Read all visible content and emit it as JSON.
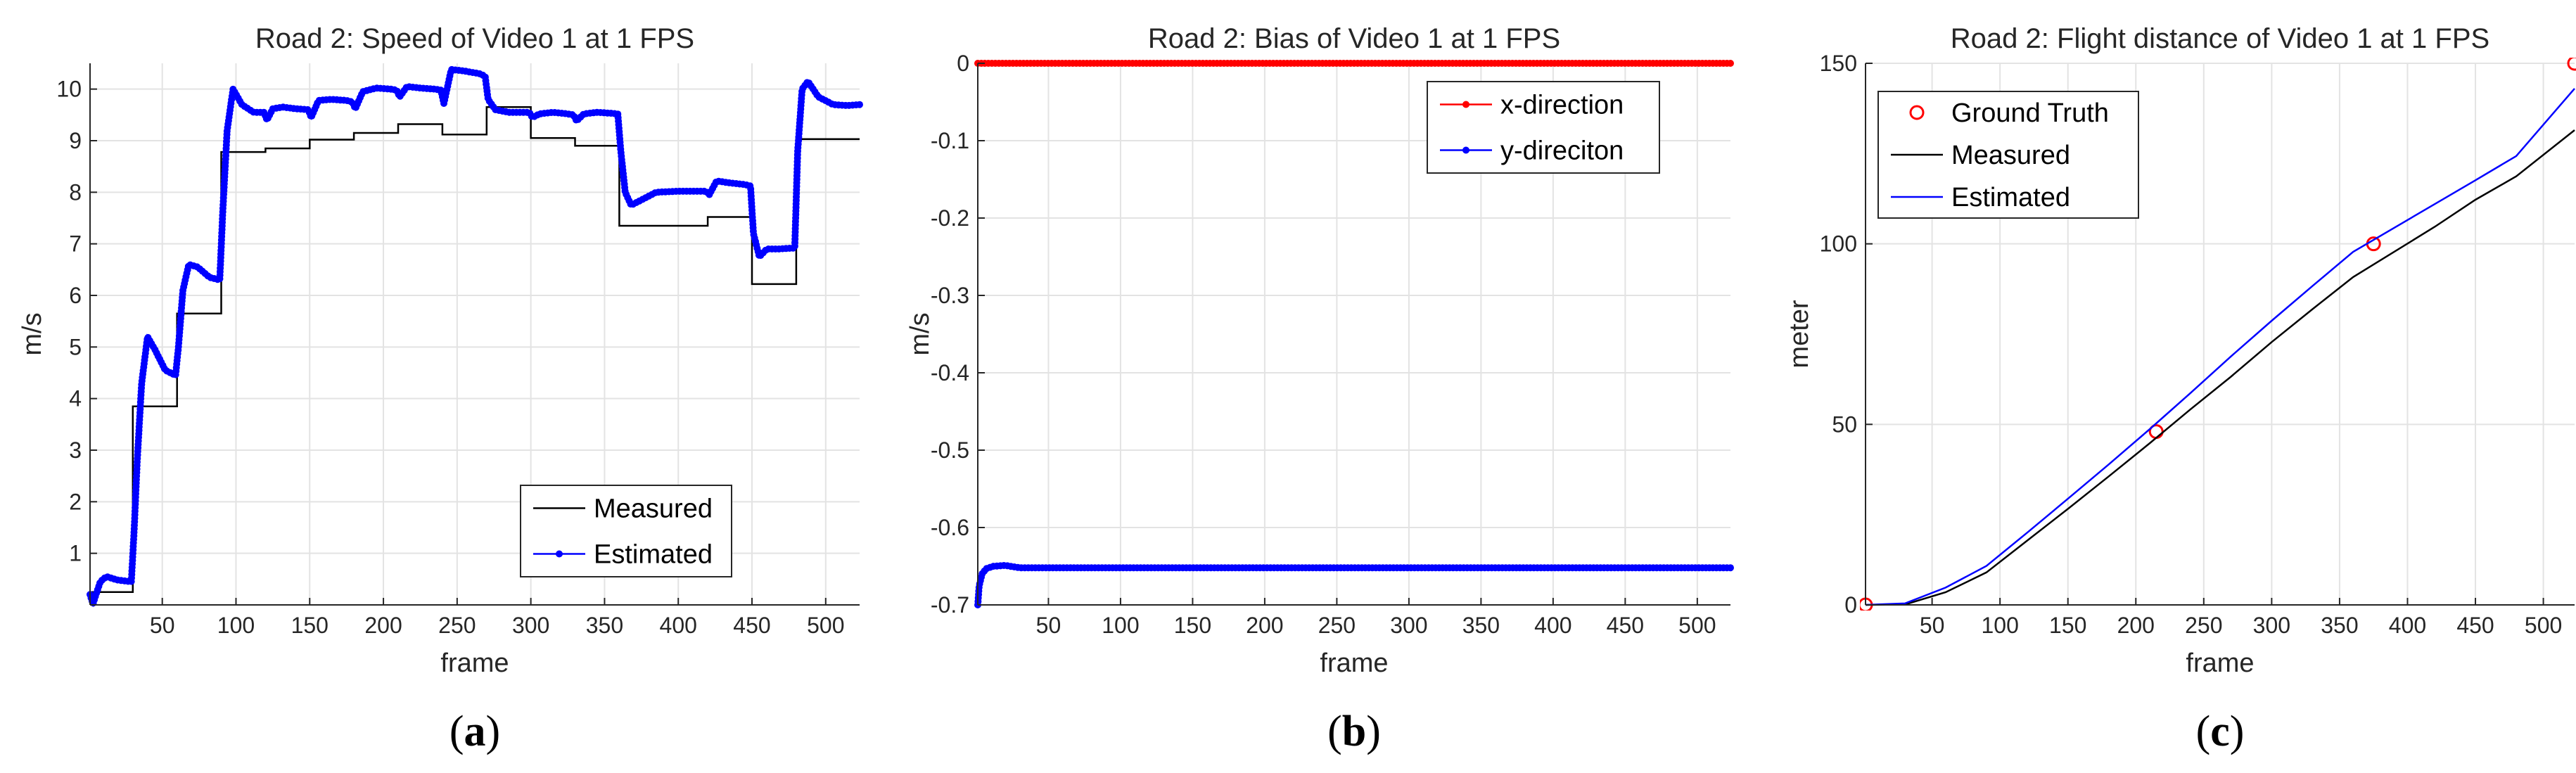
{
  "chart_data": [
    {
      "panel": "(a)",
      "panel_letter": "a",
      "type": "line",
      "title": "Road 2: Speed of Video 1 at 1 FPS",
      "xlabel": "frame",
      "ylabel": "m/s",
      "xlim": [
        1,
        523
      ],
      "ylim": [
        0,
        10.5
      ],
      "xticks": [
        50,
        100,
        150,
        200,
        250,
        300,
        350,
        400,
        450,
        500
      ],
      "yticks": [
        1,
        2,
        3,
        4,
        5,
        6,
        7,
        8,
        9,
        10
      ],
      "grid": true,
      "legend": "bottom-right",
      "series": [
        {
          "name": "Measured",
          "color": "#000000",
          "style": "step",
          "x": [
            1,
            30,
            30,
            60,
            60,
            90,
            90,
            120,
            120,
            150,
            150,
            180,
            180,
            210,
            210,
            240,
            240,
            270,
            270,
            300,
            300,
            330,
            330,
            360,
            360,
            420,
            420,
            450,
            450,
            480,
            480,
            523
          ],
          "y": [
            0.25,
            0.25,
            3.85,
            3.85,
            5.65,
            5.65,
            8.78,
            8.78,
            8.85,
            8.85,
            9.02,
            9.02,
            9.15,
            9.15,
            9.32,
            9.32,
            9.12,
            9.12,
            9.65,
            9.65,
            9.05,
            9.05,
            8.9,
            8.9,
            7.35,
            7.35,
            7.52,
            7.52,
            6.22,
            6.22,
            9.03,
            9.03
          ]
        },
        {
          "name": "Estimated",
          "color": "#0000ff",
          "style": "dotted-line",
          "x": [
            1,
            3,
            5,
            8,
            12,
            20,
            29,
            31,
            33,
            36,
            40,
            45,
            52,
            59,
            61,
            64,
            68,
            74,
            82,
            89,
            91,
            94,
            98,
            104,
            112,
            119,
            121,
            125,
            132,
            140,
            149,
            151,
            156,
            165,
            175,
            179,
            181,
            186,
            195,
            205,
            209,
            211,
            216,
            225,
            235,
            239,
            241,
            246,
            255,
            265,
            269,
            271,
            276,
            285,
            295,
            299,
            301,
            306,
            315,
            325,
            329,
            331,
            336,
            345,
            355,
            359,
            361,
            364,
            368,
            375,
            385,
            400,
            419,
            421,
            426,
            435,
            445,
            449,
            451,
            455,
            460,
            468,
            479,
            481,
            484,
            488,
            495,
            505,
            515,
            523
          ],
          "y": [
            0.2,
            0.02,
            0.2,
            0.45,
            0.55,
            0.48,
            0.45,
            1.5,
            2.8,
            4.3,
            5.2,
            4.95,
            4.55,
            4.45,
            5.0,
            6.1,
            6.6,
            6.55,
            6.35,
            6.3,
            7.6,
            9.2,
            10.0,
            9.7,
            9.55,
            9.55,
            9.4,
            9.62,
            9.65,
            9.62,
            9.6,
            9.45,
            9.78,
            9.8,
            9.78,
            9.75,
            9.62,
            9.95,
            10.02,
            10.0,
            9.98,
            9.85,
            10.05,
            10.02,
            10.0,
            9.98,
            9.72,
            10.38,
            10.35,
            10.3,
            10.25,
            9.8,
            9.6,
            9.55,
            9.55,
            9.55,
            9.45,
            9.52,
            9.55,
            9.52,
            9.5,
            9.38,
            9.52,
            9.55,
            9.53,
            9.52,
            8.8,
            8.0,
            7.75,
            7.85,
            8.0,
            8.02,
            8.02,
            7.95,
            8.22,
            8.18,
            8.15,
            8.12,
            7.2,
            6.75,
            6.9,
            6.9,
            6.92,
            8.8,
            10.0,
            10.15,
            9.85,
            9.7,
            9.68,
            9.7
          ]
        }
      ]
    },
    {
      "panel": "(b)",
      "panel_letter": "b",
      "type": "line",
      "title": "Road 2: Bias of Video 1 at 1 FPS",
      "xlabel": "frame",
      "ylabel": "m/s",
      "xlim": [
        1,
        523
      ],
      "ylim": [
        -0.7,
        0
      ],
      "xticks": [
        50,
        100,
        150,
        200,
        250,
        300,
        350,
        400,
        450,
        500
      ],
      "yticks": [
        0,
        -0.1,
        -0.2,
        -0.3,
        -0.4,
        -0.5,
        -0.6,
        -0.7
      ],
      "grid": true,
      "legend": "top-right",
      "series": [
        {
          "name": "x-direction",
          "color": "#ff0000",
          "style": "dotted-line",
          "x": [
            1,
            523
          ],
          "y": [
            0,
            0
          ]
        },
        {
          "name": "y-direciton",
          "color": "#0000ff",
          "style": "dotted-line",
          "x": [
            1,
            2,
            4,
            7,
            12,
            20,
            30,
            40,
            523
          ],
          "y": [
            -0.7,
            -0.675,
            -0.66,
            -0.653,
            -0.65,
            -0.649,
            -0.652,
            -0.652,
            -0.652
          ]
        }
      ]
    },
    {
      "panel": "(c)",
      "panel_letter": "c",
      "type": "line",
      "title": "Road 2: Flight distance of Video 1 at 1 FPS",
      "xlabel": "frame",
      "ylabel": "meter",
      "xlim": [
        1,
        523
      ],
      "ylim": [
        0,
        150
      ],
      "xticks": [
        50,
        100,
        150,
        200,
        250,
        300,
        350,
        400,
        450,
        500
      ],
      "yticks": [
        0,
        50,
        100,
        150
      ],
      "grid": true,
      "legend": "top-left",
      "series": [
        {
          "name": "Ground Truth",
          "color": "#ff0000",
          "style": "markers",
          "x": [
            1,
            215,
            375,
            523
          ],
          "y": [
            0,
            48,
            100,
            150
          ]
        },
        {
          "name": "Measured",
          "color": "#000000",
          "style": "line",
          "x": [
            1,
            30,
            60,
            90,
            120,
            150,
            180,
            210,
            240,
            270,
            300,
            330,
            360,
            420,
            450,
            480,
            523
          ],
          "y": [
            0,
            0.1,
            3.5,
            9.0,
            17.8,
            26.6,
            35.6,
            44.7,
            54.1,
            63.2,
            72.8,
            81.9,
            90.8,
            104.7,
            112.2,
            118.7,
            131.5
          ]
        },
        {
          "name": "Estimated",
          "color": "#0000ff",
          "style": "line",
          "x": [
            1,
            30,
            60,
            90,
            120,
            150,
            180,
            210,
            240,
            270,
            300,
            330,
            360,
            420,
            450,
            480,
            523
          ],
          "y": [
            0,
            0.4,
            4.8,
            10.8,
            20.0,
            29.4,
            38.9,
            48.6,
            58.6,
            68.8,
            78.7,
            88.3,
            97.8,
            111.0,
            117.6,
            124.3,
            143.0
          ]
        }
      ]
    }
  ]
}
